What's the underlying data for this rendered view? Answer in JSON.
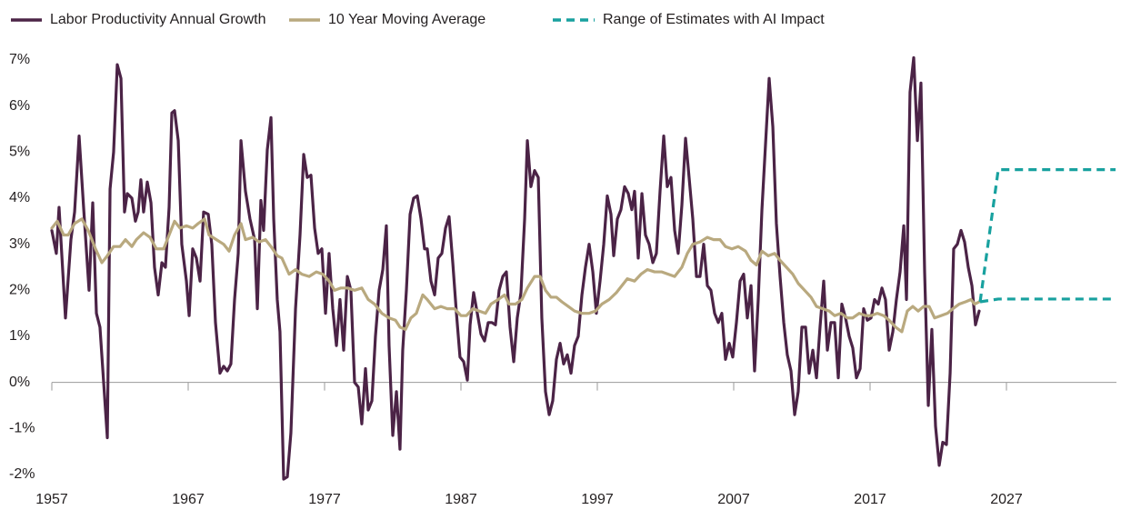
{
  "chart_data": {
    "type": "line",
    "xlim": [
      1957,
      2035
    ],
    "xticks": [
      1957,
      1967,
      1977,
      1987,
      1997,
      2007,
      2017,
      2027
    ],
    "ylim": [
      -2,
      7
    ],
    "yticks": [
      {
        "value": -2,
        "label": "-2%"
      },
      {
        "value": -1,
        "label": "-1%"
      },
      {
        "value": 0,
        "label": "0%"
      },
      {
        "value": 1,
        "label": "1%"
      },
      {
        "value": 2,
        "label": "2%"
      },
      {
        "value": 3,
        "label": "3%"
      },
      {
        "value": 4,
        "label": "4%"
      },
      {
        "value": 5,
        "label": "5%"
      },
      {
        "value": 6,
        "label": "6%"
      },
      {
        "value": 7,
        "label": "7%"
      }
    ],
    "grid": false,
    "legend": "top",
    "series": [
      {
        "name": "Labor Productivity Annual Growth",
        "color": "#4b2346",
        "x": [
          1957,
          1957.33,
          1957.53,
          1958,
          1958.4,
          1958.67,
          1959,
          1959.33,
          1959.73,
          1960,
          1960.27,
          1960.53,
          1961.07,
          1961.27,
          1961.53,
          1961.8,
          1962.07,
          1962.33,
          1962.53,
          1962.87,
          1963.13,
          1963.33,
          1963.53,
          1963.73,
          1964,
          1964.27,
          1964.53,
          1964.8,
          1965.07,
          1965.33,
          1965.6,
          1965.8,
          1966,
          1966.27,
          1966.53,
          1966.87,
          1967.07,
          1967.33,
          1967.6,
          1967.87,
          1968.13,
          1968.47,
          1968.73,
          1969,
          1969.33,
          1969.6,
          1969.87,
          1970.13,
          1970.4,
          1970.67,
          1970.87,
          1971.2,
          1971.53,
          1971.87,
          1972.07,
          1972.33,
          1972.53,
          1972.8,
          1973.07,
          1973.27,
          1973.53,
          1973.73,
          1974,
          1974.27,
          1974.53,
          1974.87,
          1975.2,
          1975.47,
          1975.73,
          1976,
          1976.27,
          1976.53,
          1976.8,
          1977.07,
          1977.33,
          1977.6,
          1977.87,
          1978.13,
          1978.4,
          1978.67,
          1978.93,
          1979.2,
          1979.47,
          1979.73,
          1980,
          1980.2,
          1980.47,
          1980.73,
          1981,
          1981.27,
          1981.53,
          1981.73,
          1982,
          1982.27,
          1982.53,
          1982.73,
          1983,
          1983.27,
          1983.53,
          1983.8,
          1984.07,
          1984.33,
          1984.53,
          1984.8,
          1985.07,
          1985.33,
          1985.6,
          1985.87,
          1986.13,
          1986.4,
          1986.67,
          1986.93,
          1987.2,
          1987.47,
          1987.67,
          1987.93,
          1988.2,
          1988.47,
          1988.73,
          1989,
          1989.27,
          1989.53,
          1989.8,
          1990.07,
          1990.33,
          1990.6,
          1990.87,
          1991.13,
          1991.4,
          1991.67,
          1991.87,
          1992.13,
          1992.4,
          1992.67,
          1992.93,
          1993.2,
          1993.47,
          1993.73,
          1994,
          1994.27,
          1994.53,
          1994.8,
          1995.07,
          1995.33,
          1995.6,
          1995.87,
          1996.13,
          1996.4,
          1996.67,
          1996.93,
          1997.2,
          1997.47,
          1997.73,
          1998,
          1998.2,
          1998.47,
          1998.73,
          1999,
          1999.27,
          1999.53,
          1999.73,
          2000,
          2000.27,
          2000.53,
          2000.8,
          2001.07,
          2001.33,
          2001.6,
          2001.87,
          2002.13,
          2002.4,
          2002.67,
          2002.93,
          2003.2,
          2003.47,
          2003.73,
          2004,
          2004.27,
          2004.53,
          2004.8,
          2005.07,
          2005.33,
          2005.6,
          2005.87,
          2006.13,
          2006.4,
          2006.67,
          2006.93,
          2007.2,
          2007.47,
          2007.73,
          2008,
          2008.27,
          2008.53,
          2008.8,
          2009.07,
          2009.33,
          2009.6,
          2009.87,
          2010.13,
          2010.4,
          2010.67,
          2010.93,
          2011.2,
          2011.47,
          2011.73,
          2012,
          2012.27,
          2012.53,
          2012.8,
          2013.07,
          2013.33,
          2013.6,
          2013.87,
          2014.13,
          2014.4,
          2014.67,
          2014.93,
          2015.2,
          2015.47,
          2015.73,
          2016,
          2016.27,
          2016.53,
          2016.8,
          2017.07,
          2017.33,
          2017.6,
          2017.87,
          2018.13,
          2018.4,
          2018.67,
          2018.93,
          2019.2,
          2019.47,
          2019.67,
          2019.93,
          2020.2,
          2020.47,
          2020.73,
          2021,
          2021.27,
          2021.53,
          2021.8,
          2022.07,
          2022.33,
          2022.6,
          2022.87,
          2023.13,
          2023.4,
          2023.67,
          2023.93,
          2024.2,
          2024.47,
          2024.73,
          2025
        ],
        "values": [
          3.3,
          2.8,
          3.8,
          1.4,
          3.1,
          3.7,
          5.35,
          3.8,
          2.0,
          3.9,
          1.5,
          1.2,
          -1.2,
          4.2,
          5.0,
          6.9,
          6.6,
          3.7,
          4.1,
          4.0,
          3.5,
          3.7,
          4.4,
          3.7,
          4.35,
          3.9,
          2.5,
          1.9,
          2.6,
          2.5,
          3.8,
          5.85,
          5.9,
          5.25,
          3.0,
          2.2,
          1.45,
          2.9,
          2.7,
          2.2,
          3.7,
          3.65,
          3.0,
          1.3,
          0.2,
          0.35,
          0.25,
          0.4,
          1.8,
          2.8,
          5.25,
          4.15,
          3.55,
          3.1,
          1.6,
          3.95,
          3.3,
          5.05,
          5.75,
          3.55,
          1.8,
          1.1,
          -2.1,
          -2.05,
          -1.1,
          1.6,
          3.2,
          4.95,
          4.45,
          4.5,
          3.35,
          2.8,
          2.9,
          1.5,
          2.8,
          1.6,
          0.8,
          1.8,
          0.7,
          2.3,
          2.0,
          0.0,
          -0.1,
          -0.9,
          0.3,
          -0.6,
          -0.4,
          1.0,
          2.0,
          2.45,
          3.4,
          0.8,
          -1.15,
          -0.2,
          -1.45,
          0.7,
          2.0,
          3.65,
          4.0,
          4.05,
          3.55,
          2.9,
          2.9,
          2.2,
          1.9,
          2.7,
          2.8,
          3.35,
          3.6,
          2.6,
          1.5,
          0.55,
          0.45,
          0.05,
          1.25,
          1.95,
          1.5,
          1.05,
          0.9,
          1.3,
          1.3,
          1.25,
          2.0,
          2.3,
          2.4,
          1.2,
          0.45,
          1.4,
          1.95,
          3.55,
          5.25,
          4.25,
          4.6,
          4.45,
          1.4,
          -0.2,
          -0.7,
          -0.4,
          0.5,
          0.85,
          0.4,
          0.6,
          0.2,
          0.8,
          1.0,
          1.9,
          2.5,
          3.0,
          2.4,
          1.5,
          2.2,
          3.0,
          4.05,
          3.65,
          2.75,
          3.55,
          3.75,
          4.25,
          4.1,
          3.75,
          4.15,
          2.7,
          4.1,
          3.2,
          3.0,
          2.6,
          2.8,
          4.15,
          5.35,
          4.25,
          4.45,
          3.3,
          2.8,
          3.85,
          5.3,
          4.45,
          3.55,
          2.3,
          2.3,
          3.0,
          2.1,
          2.0,
          1.5,
          1.3,
          1.5,
          0.5,
          0.85,
          0.55,
          1.3,
          2.2,
          2.35,
          1.4,
          2.1,
          0.25,
          1.8,
          3.75,
          5.15,
          6.6,
          5.55,
          3.45,
          2.3,
          1.3,
          0.6,
          0.25,
          -0.7,
          -0.2,
          1.2,
          1.2,
          0.2,
          0.7,
          0.1,
          1.2,
          2.2,
          0.7,
          1.3,
          1.3,
          0.1,
          1.7,
          1.4,
          1.0,
          0.75,
          0.1,
          0.3,
          1.6,
          1.35,
          1.4,
          1.8,
          1.7,
          2.05,
          1.8,
          0.7,
          1.1,
          1.8,
          2.4,
          3.4,
          1.8,
          6.3,
          7.05,
          5.25,
          6.5,
          2.4,
          -0.5,
          1.15,
          -0.95,
          -1.8,
          -1.3,
          -1.35,
          0.2,
          2.9,
          3.0,
          3.3,
          3.05,
          2.5,
          2.1,
          1.25,
          1.55
        ]
      },
      {
        "name": "10 Year Moving Average",
        "color": "#b9a97f",
        "x": [
          1957,
          1957.4,
          1957.87,
          1958.2,
          1958.67,
          1959.2,
          1959.67,
          1960.2,
          1960.67,
          1961.07,
          1961.53,
          1962,
          1962.4,
          1962.87,
          1963.2,
          1963.73,
          1964.2,
          1964.67,
          1965.2,
          1965.6,
          1966,
          1966.4,
          1966.87,
          1967.33,
          1967.73,
          1968.2,
          1968.53,
          1969.07,
          1969.6,
          1970,
          1970.4,
          1970.87,
          1971.2,
          1971.73,
          1972.2,
          1972.67,
          1973.07,
          1973.53,
          1973.87,
          1974.4,
          1974.87,
          1975.33,
          1975.87,
          1976.4,
          1976.87,
          1977.33,
          1977.73,
          1978.2,
          1978.67,
          1979.2,
          1979.73,
          1980.2,
          1980.67,
          1981.2,
          1981.73,
          1982.2,
          1982.53,
          1982.93,
          1983.33,
          1983.73,
          1984.2,
          1984.53,
          1985.07,
          1985.53,
          1986,
          1986.53,
          1987,
          1987.4,
          1987.87,
          1988.33,
          1988.8,
          1989.2,
          1989.73,
          1990.2,
          1990.53,
          1991,
          1991.47,
          1991.87,
          1992.4,
          1992.8,
          1993.2,
          1993.6,
          1994,
          1994.4,
          1994.87,
          1995.33,
          1995.87,
          1996.4,
          1996.87,
          1997.33,
          1997.87,
          1998.4,
          1998.8,
          1999.2,
          1999.73,
          2000.2,
          2000.67,
          2001.2,
          2001.73,
          2002.2,
          2002.67,
          2003.2,
          2003.6,
          2004,
          2004.53,
          2005.07,
          2005.53,
          2006,
          2006.4,
          2006.87,
          2007.33,
          2007.87,
          2008.27,
          2008.67,
          2009.07,
          2009.53,
          2010,
          2010.4,
          2010.87,
          2011.33,
          2011.73,
          2012.2,
          2012.67,
          2013.07,
          2013.53,
          2014,
          2014.4,
          2014.87,
          2015.33,
          2015.73,
          2016.2,
          2016.67,
          2017.07,
          2017.53,
          2018,
          2018.4,
          2018.87,
          2019.33,
          2019.73,
          2020.13,
          2020.53,
          2020.93,
          2021.33,
          2021.73,
          2022.2,
          2022.67,
          2023.07,
          2023.53,
          2024,
          2024.4,
          2024.67,
          2025
        ],
        "values": [
          3.35,
          3.5,
          3.2,
          3.2,
          3.45,
          3.55,
          3.3,
          2.9,
          2.6,
          2.75,
          2.95,
          2.95,
          3.1,
          2.95,
          3.1,
          3.25,
          3.15,
          2.9,
          2.9,
          3.2,
          3.5,
          3.35,
          3.4,
          3.35,
          3.45,
          3.55,
          3.2,
          3.1,
          3.0,
          2.85,
          3.2,
          3.45,
          3.1,
          3.15,
          3.05,
          3.1,
          2.95,
          2.75,
          2.7,
          2.35,
          2.45,
          2.35,
          2.3,
          2.4,
          2.35,
          2.2,
          2.0,
          2.05,
          2.05,
          2.0,
          2.05,
          1.8,
          1.7,
          1.5,
          1.4,
          1.35,
          1.2,
          1.15,
          1.4,
          1.5,
          1.9,
          1.8,
          1.6,
          1.65,
          1.6,
          1.6,
          1.45,
          1.45,
          1.6,
          1.55,
          1.5,
          1.7,
          1.8,
          1.9,
          1.7,
          1.7,
          1.8,
          2.05,
          2.3,
          2.3,
          2.0,
          1.85,
          1.85,
          1.75,
          1.65,
          1.55,
          1.5,
          1.5,
          1.55,
          1.7,
          1.8,
          1.95,
          2.1,
          2.25,
          2.2,
          2.35,
          2.45,
          2.4,
          2.4,
          2.35,
          2.3,
          2.5,
          2.8,
          3.0,
          3.05,
          3.15,
          3.1,
          3.1,
          2.95,
          2.9,
          2.95,
          2.85,
          2.65,
          2.55,
          2.85,
          2.75,
          2.8,
          2.65,
          2.5,
          2.35,
          2.15,
          2.0,
          1.85,
          1.65,
          1.6,
          1.55,
          1.45,
          1.5,
          1.4,
          1.4,
          1.5,
          1.45,
          1.45,
          1.5,
          1.45,
          1.35,
          1.2,
          1.1,
          1.55,
          1.65,
          1.55,
          1.65,
          1.65,
          1.4,
          1.45,
          1.5,
          1.6,
          1.7,
          1.75,
          1.8,
          1.7,
          1.75
        ]
      },
      {
        "name": "Range of Estimates with AI Impact",
        "color": "#18a19f",
        "dashed": true,
        "x": [
          2025.07,
          2026.4,
          2035
        ],
        "values": [
          1.75,
          4.62,
          4.62
        ],
        "low_values": [
          1.75,
          1.81,
          1.81
        ]
      }
    ]
  }
}
